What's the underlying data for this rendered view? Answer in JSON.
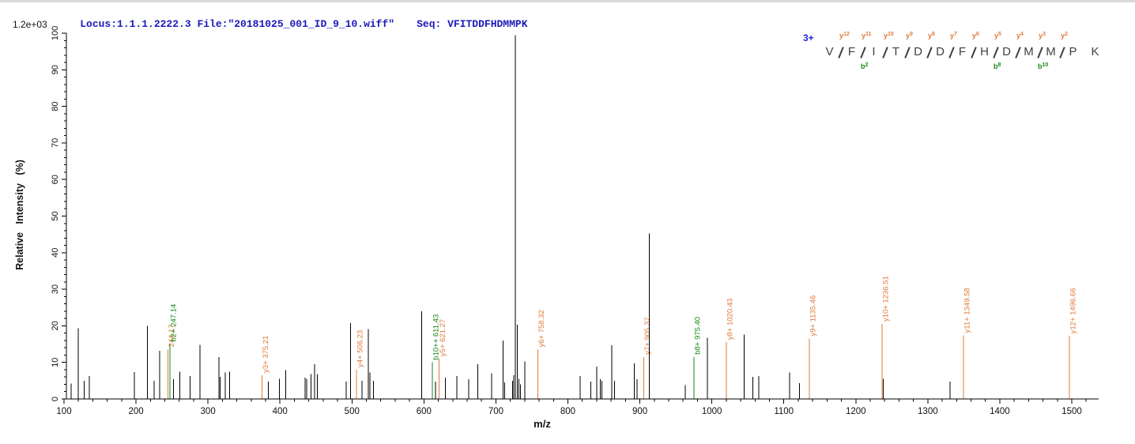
{
  "header": {
    "locus_file": "Locus:1.1.1.2222.3 File:\"20181025_001_ID_9_10.wiff\"",
    "seq": "Seq: VFITDDFHDMMPK",
    "max_intensity": "1.2e+03"
  },
  "fragment_map": {
    "charge": "3+",
    "residues": [
      "V",
      "F",
      "I",
      "T",
      "D",
      "D",
      "F",
      "H",
      "D",
      "M",
      "M",
      "P",
      "K"
    ],
    "boundaries": [
      {
        "y": "y12"
      },
      {
        "y": "y11",
        "b": "b2"
      },
      {
        "y": "y10"
      },
      {
        "y": "y9"
      },
      {
        "y": "y8"
      },
      {
        "y": "y7"
      },
      {
        "y": "y6"
      },
      {
        "y": "y5",
        "b": "b8"
      },
      {
        "y": "y4"
      },
      {
        "y": "y3",
        "b": "b10"
      },
      {
        "y": "y2"
      },
      {}
    ]
  },
  "chart_data": {
    "type": "bar",
    "subtype": "mass-spectrum",
    "xlabel": "m/z",
    "ylabel": "Relative Intensity (%)",
    "xlim": [
      100,
      1500
    ],
    "ylim": [
      0,
      100
    ],
    "x_major_step": 100,
    "x_minor_step": 20,
    "y_major_step": 10,
    "y_minor_step": 2,
    "grid": false,
    "colors": {
      "y_ion": "#e07b3a",
      "b_ion": "#168a16",
      "peak": "#000000",
      "axis": "#000000"
    },
    "peaks": [
      {
        "mz": 110,
        "i": 4.2
      },
      {
        "mz": 120,
        "i": 19.3
      },
      {
        "mz": 128,
        "i": 5.0
      },
      {
        "mz": 135,
        "i": 6.3
      },
      {
        "mz": 198,
        "i": 7.3
      },
      {
        "mz": 216,
        "i": 20.0
      },
      {
        "mz": 225,
        "i": 5.0
      },
      {
        "mz": 233,
        "i": 13.2
      },
      {
        "mz": 244.17,
        "i": 13.5,
        "label": "244.17",
        "ion": "y"
      },
      {
        "mz": 247.14,
        "i": 15.0,
        "label": "b2+ 247.14",
        "ion": "b"
      },
      {
        "mz": 252,
        "i": 5.4
      },
      {
        "mz": 261,
        "i": 7.5
      },
      {
        "mz": 275,
        "i": 6.3
      },
      {
        "mz": 289,
        "i": 14.8
      },
      {
        "mz": 315,
        "i": 11.5
      },
      {
        "mz": 317,
        "i": 6.0
      },
      {
        "mz": 324,
        "i": 7.2
      },
      {
        "mz": 330,
        "i": 7.5
      },
      {
        "mz": 375.21,
        "i": 6.5,
        "label": "y3+ 375.21",
        "ion": "y"
      },
      {
        "mz": 384,
        "i": 4.7
      },
      {
        "mz": 399,
        "i": 5.5
      },
      {
        "mz": 408,
        "i": 7.9
      },
      {
        "mz": 435,
        "i": 5.8
      },
      {
        "mz": 437,
        "i": 5.5
      },
      {
        "mz": 443,
        "i": 6.8
      },
      {
        "mz": 448,
        "i": 9.5
      },
      {
        "mz": 452,
        "i": 6.8
      },
      {
        "mz": 492,
        "i": 4.7
      },
      {
        "mz": 498,
        "i": 20.7
      },
      {
        "mz": 506.23,
        "i": 8.0,
        "label": "y4+ 506.23",
        "ion": "y"
      },
      {
        "mz": 514,
        "i": 5.0
      },
      {
        "mz": 523,
        "i": 19.1
      },
      {
        "mz": 525,
        "i": 7.2
      },
      {
        "mz": 530,
        "i": 5.0
      },
      {
        "mz": 597,
        "i": 24.0
      },
      {
        "mz": 611.43,
        "i": 10.0,
        "label": "b10++ 611.43",
        "ion": "b"
      },
      {
        "mz": 616,
        "i": 4.8
      },
      {
        "mz": 621.27,
        "i": 11.0,
        "label": "y5+ 621.27",
        "ion": "y"
      },
      {
        "mz": 630,
        "i": 5.8
      },
      {
        "mz": 646,
        "i": 6.3
      },
      {
        "mz": 662,
        "i": 5.4
      },
      {
        "mz": 675,
        "i": 9.5
      },
      {
        "mz": 694,
        "i": 7.0
      },
      {
        "mz": 710,
        "i": 16.0
      },
      {
        "mz": 712,
        "i": 4.5
      },
      {
        "mz": 723,
        "i": 5.0
      },
      {
        "mz": 725,
        "i": 6.5
      },
      {
        "mz": 727,
        "i": 99.5
      },
      {
        "mz": 730,
        "i": 20.3
      },
      {
        "mz": 732,
        "i": 5.5
      },
      {
        "mz": 734,
        "i": 4.0
      },
      {
        "mz": 740,
        "i": 10.3
      },
      {
        "mz": 758.32,
        "i": 13.5,
        "label": "y6+ 758.32",
        "ion": "y"
      },
      {
        "mz": 817,
        "i": 6.3
      },
      {
        "mz": 832,
        "i": 4.8
      },
      {
        "mz": 840,
        "i": 8.9
      },
      {
        "mz": 845,
        "i": 5.4
      },
      {
        "mz": 847,
        "i": 5.0
      },
      {
        "mz": 861,
        "i": 14.7
      },
      {
        "mz": 865,
        "i": 5.0
      },
      {
        "mz": 892,
        "i": 9.7
      },
      {
        "mz": 896,
        "i": 5.4
      },
      {
        "mz": 905.37,
        "i": 11.5,
        "label": "y7+ 905.37",
        "ion": "y"
      },
      {
        "mz": 913,
        "i": 45.2
      },
      {
        "mz": 963,
        "i": 3.8
      },
      {
        "mz": 975.4,
        "i": 11.5,
        "label": "b8+ 975.40",
        "ion": "b"
      },
      {
        "mz": 994,
        "i": 16.7
      },
      {
        "mz": 1020.43,
        "i": 15.5,
        "label": "y8+ 1020.43",
        "ion": "y"
      },
      {
        "mz": 1045,
        "i": 17.6
      },
      {
        "mz": 1057,
        "i": 6.1
      },
      {
        "mz": 1065,
        "i": 6.3
      },
      {
        "mz": 1108,
        "i": 7.2
      },
      {
        "mz": 1122,
        "i": 4.3
      },
      {
        "mz": 1135.46,
        "i": 16.5,
        "label": "y9+ 1135.46",
        "ion": "y"
      },
      {
        "mz": 1236.51,
        "i": 20.5,
        "label": "y10+ 1236.51",
        "ion": "y"
      },
      {
        "mz": 1238,
        "i": 5.5
      },
      {
        "mz": 1331,
        "i": 4.8
      },
      {
        "mz": 1349.58,
        "i": 17.4,
        "label": "y11+ 1349.58",
        "ion": "y"
      },
      {
        "mz": 1496.66,
        "i": 17.2,
        "label": "y12+ 1496.66",
        "ion": "y"
      }
    ]
  }
}
